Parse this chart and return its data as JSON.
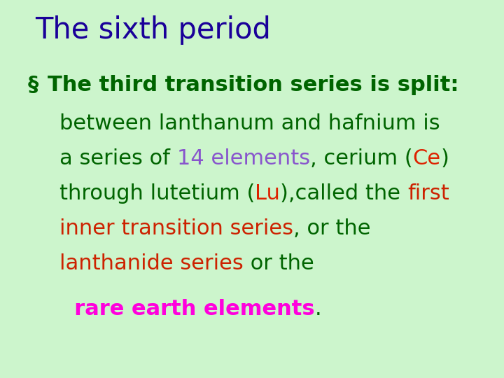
{
  "title": "The sixth period",
  "title_color": "#1a0099",
  "bg_color": "#ccf5cc",
  "bullet_char": "§",
  "green": "#006400",
  "red": "#cc2200",
  "purple": "#8855cc",
  "orange_red": "#dd2200",
  "magenta": "#ff00dd",
  "lines": [
    [
      {
        "text": "between lanthanum and hafnium is",
        "color": "#006400",
        "bold": false
      }
    ],
    [
      {
        "text": "a series of ",
        "color": "#006400",
        "bold": false
      },
      {
        "text": "14 elements",
        "color": "#8855cc",
        "bold": false
      },
      {
        "text": ", cerium (",
        "color": "#006400",
        "bold": false
      },
      {
        "text": "Ce",
        "color": "#dd2200",
        "bold": false
      },
      {
        "text": ")",
        "color": "#006400",
        "bold": false
      }
    ],
    [
      {
        "text": "through lutetium (",
        "color": "#006400",
        "bold": false
      },
      {
        "text": "Lu",
        "color": "#dd2200",
        "bold": false
      },
      {
        "text": "),called the ",
        "color": "#006400",
        "bold": false
      },
      {
        "text": "first",
        "color": "#cc2200",
        "bold": false
      }
    ],
    [
      {
        "text": "inner transition series",
        "color": "#cc2200",
        "bold": false
      },
      {
        "text": ", or the",
        "color": "#006400",
        "bold": false
      }
    ],
    [
      {
        "text": "lanthanide series",
        "color": "#cc2200",
        "bold": false
      },
      {
        "text": " or the",
        "color": "#006400",
        "bold": false
      }
    ],
    [
      {
        "text": "  rare earth elements",
        "color": "#ff00dd",
        "bold": true
      },
      {
        "text": ".",
        "color": "#006400",
        "bold": false
      }
    ]
  ]
}
